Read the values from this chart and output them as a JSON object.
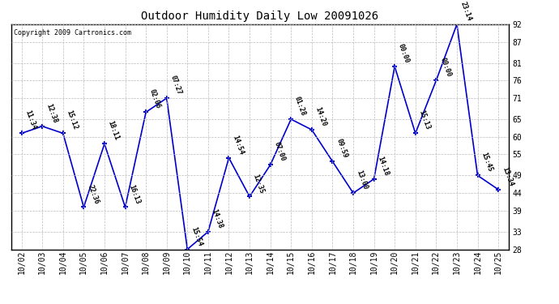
{
  "title": "Outdoor Humidity Daily Low 20091026",
  "copyright": "Copyright 2009 Cartronics.com",
  "line_color": "#0000cc",
  "marker_color": "#0000cc",
  "background_color": "#ffffff",
  "grid_color": "#bbbbbb",
  "x_labels": [
    "10/02",
    "10/03",
    "10/04",
    "10/05",
    "10/06",
    "10/07",
    "10/08",
    "10/09",
    "10/10",
    "10/11",
    "10/12",
    "10/13",
    "10/14",
    "10/15",
    "10/16",
    "10/17",
    "10/18",
    "10/19",
    "10/20",
    "10/21",
    "10/22",
    "10/23",
    "10/24",
    "10/25"
  ],
  "y_values": [
    61,
    63,
    61,
    40,
    58,
    40,
    67,
    71,
    28,
    33,
    54,
    43,
    52,
    65,
    62,
    53,
    44,
    48,
    80,
    61,
    76,
    92,
    49,
    45
  ],
  "point_labels": [
    "11:34",
    "12:38",
    "15:12",
    "22:36",
    "18:11",
    "16:13",
    "02:06",
    "07:27",
    "15:54",
    "14:38",
    "14:54",
    "12:35",
    "07:00",
    "01:28",
    "14:20",
    "09:59",
    "13:00",
    "14:18",
    "00:00",
    "15:13",
    "00:00",
    "23:14",
    "15:45",
    "13:34"
  ],
  "ylim_min": 28,
  "ylim_max": 92,
  "yticks": [
    28,
    33,
    39,
    44,
    49,
    55,
    60,
    65,
    71,
    76,
    81,
    87,
    92
  ],
  "title_fontsize": 10,
  "label_fontsize": 6,
  "tick_fontsize": 7
}
